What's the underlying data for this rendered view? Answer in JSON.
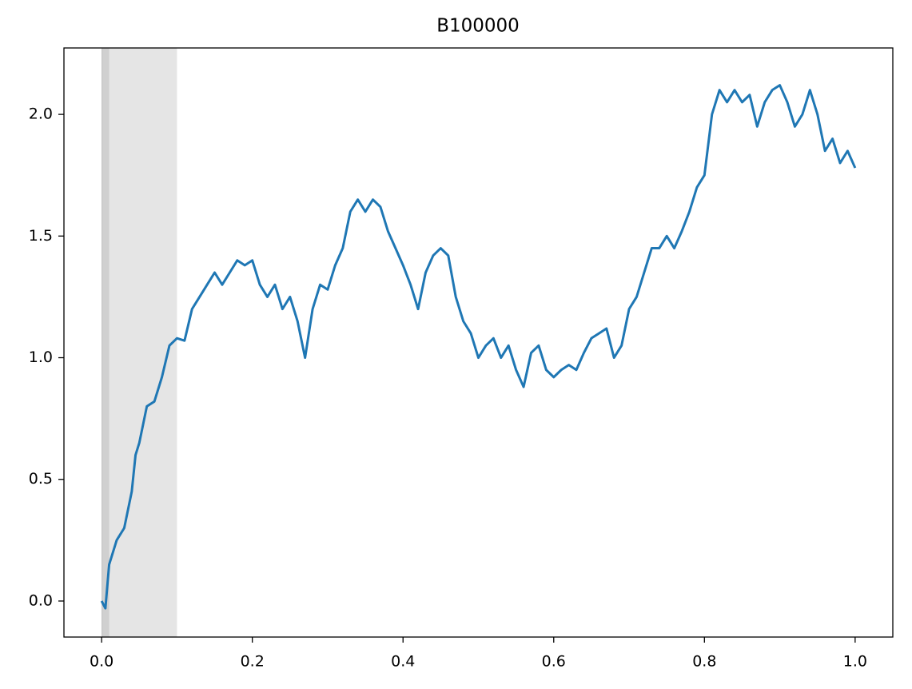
{
  "chart_data": {
    "type": "line",
    "title": "B100000",
    "x": [
      0,
      0.005,
      0.01,
      0.02,
      0.03,
      0.04,
      0.045,
      0.05,
      0.06,
      0.07,
      0.08,
      0.09,
      0.1,
      0.11,
      0.12,
      0.13,
      0.14,
      0.15,
      0.16,
      0.17,
      0.18,
      0.19,
      0.2,
      0.21,
      0.22,
      0.23,
      0.24,
      0.25,
      0.26,
      0.27,
      0.28,
      0.29,
      0.3,
      0.31,
      0.32,
      0.33,
      0.34,
      0.35,
      0.36,
      0.37,
      0.38,
      0.39,
      0.4,
      0.41,
      0.42,
      0.43,
      0.44,
      0.45,
      0.46,
      0.47,
      0.48,
      0.49,
      0.5,
      0.51,
      0.52,
      0.53,
      0.54,
      0.55,
      0.56,
      0.57,
      0.58,
      0.59,
      0.6,
      0.61,
      0.62,
      0.63,
      0.64,
      0.65,
      0.66,
      0.67,
      0.68,
      0.69,
      0.7,
      0.71,
      0.72,
      0.73,
      0.74,
      0.75,
      0.76,
      0.77,
      0.78,
      0.79,
      0.8,
      0.81,
      0.82,
      0.83,
      0.84,
      0.85,
      0.86,
      0.87,
      0.88,
      0.89,
      0.9,
      0.91,
      0.92,
      0.93,
      0.94,
      0.95,
      0.96,
      0.97,
      0.98,
      0.99,
      1.0
    ],
    "series": [
      {
        "color": "#1f77b4",
        "values": [
          0,
          -0.03,
          0.15,
          0.25,
          0.3,
          0.45,
          0.6,
          0.65,
          0.8,
          0.82,
          0.92,
          1.05,
          1.08,
          1.07,
          1.2,
          1.25,
          1.3,
          1.35,
          1.3,
          1.35,
          1.4,
          1.38,
          1.4,
          1.3,
          1.25,
          1.3,
          1.2,
          1.25,
          1.15,
          1.0,
          1.2,
          1.3,
          1.28,
          1.38,
          1.45,
          1.6,
          1.65,
          1.6,
          1.65,
          1.62,
          1.52,
          1.45,
          1.38,
          1.3,
          1.2,
          1.35,
          1.42,
          1.45,
          1.42,
          1.25,
          1.15,
          1.1,
          1.0,
          1.05,
          1.08,
          1.0,
          1.05,
          0.95,
          0.88,
          1.02,
          1.05,
          0.95,
          0.92,
          0.95,
          0.97,
          0.95,
          1.02,
          1.08,
          1.1,
          1.12,
          1.0,
          1.05,
          1.2,
          1.25,
          1.35,
          1.45,
          1.45,
          1.5,
          1.45,
          1.52,
          1.6,
          1.7,
          1.75,
          2.0,
          2.1,
          2.05,
          2.1,
          2.05,
          2.08,
          1.95,
          2.05,
          2.1,
          2.12,
          2.05,
          1.95,
          2.0,
          2.1,
          2.0,
          1.85,
          1.9,
          1.8,
          1.85,
          1.78
        ]
      }
    ],
    "spans": [
      [
        0,
        0.1
      ],
      [
        0,
        0.01
      ],
      [
        0,
        0.001
      ]
    ],
    "span_color": "#7f7f7f",
    "xlim": [
      -0.05,
      1.05
    ],
    "ylim": [
      -0.148,
      2.273
    ],
    "xticks": [
      {
        "value": 0,
        "label": "0.0"
      },
      0.2,
      0.4,
      0.6,
      0.8,
      {
        "value": 1,
        "label": "1.0"
      }
    ],
    "yticks": [
      {
        "value": 0,
        "label": "0.0"
      },
      0.5,
      {
        "value": 1,
        "label": "1.0"
      },
      1.5,
      {
        "value": 2,
        "label": "2.0"
      }
    ],
    "grid": false
  }
}
